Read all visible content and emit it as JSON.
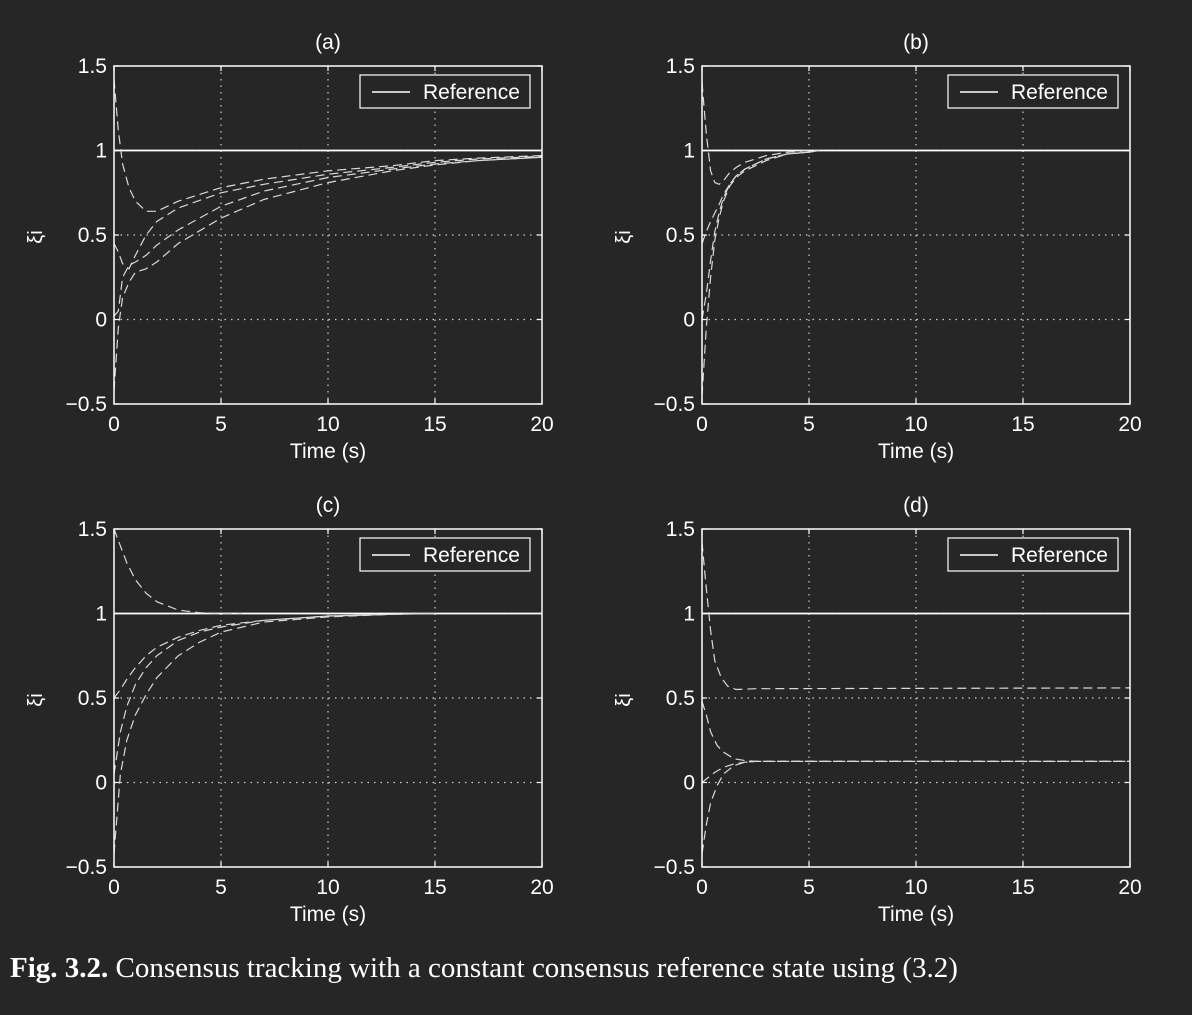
{
  "caption": {
    "label": "Fig. 3.2.",
    "text": "Consensus tracking with a constant consensus reference state using (3.2)"
  },
  "colors": {
    "background": "#262626",
    "foreground": "#ffffff",
    "trajectory": "#d9d9d9",
    "grid": "#cfcfcf"
  },
  "chart_data": [
    {
      "type": "line",
      "title": "(a)",
      "xlabel": "Time (s)",
      "ylabel": "ξi",
      "xlim": [
        0,
        20
      ],
      "ylim": [
        -0.5,
        1.5
      ],
      "xticks": [
        0,
        5,
        10,
        15,
        20
      ],
      "yticks": [
        -0.5,
        0,
        0.5,
        1,
        1.5
      ],
      "ytick_labels": [
        "−0.5",
        "0",
        "0.5",
        "1",
        "1.5"
      ],
      "grid": true,
      "legend": {
        "placement": "top-right",
        "entries": [
          "Reference"
        ]
      },
      "series": [
        {
          "name": "Reference",
          "style": "solid",
          "x": [
            0,
            20
          ],
          "y": [
            1,
            1
          ]
        },
        {
          "style": "dashed",
          "x": [
            0,
            0.2,
            0.4,
            0.7,
            1,
            1.5,
            2,
            3,
            5,
            7,
            10,
            13,
            15,
            17,
            20
          ],
          "y": [
            1.42,
            1.12,
            0.92,
            0.78,
            0.7,
            0.64,
            0.64,
            0.7,
            0.78,
            0.83,
            0.88,
            0.91,
            0.94,
            0.955,
            0.97
          ]
        },
        {
          "style": "dashed",
          "x": [
            0,
            0.2,
            0.4,
            0.7,
            1,
            1.5,
            2,
            3,
            5,
            7,
            10,
            13,
            15,
            17,
            20
          ],
          "y": [
            0.45,
            0.4,
            0.33,
            0.3,
            0.38,
            0.5,
            0.58,
            0.66,
            0.75,
            0.8,
            0.86,
            0.9,
            0.93,
            0.95,
            0.965
          ]
        },
        {
          "style": "dashed",
          "x": [
            0,
            0.2,
            0.4,
            0.7,
            1,
            1.5,
            2,
            3,
            5,
            7,
            10,
            13,
            15,
            17,
            20
          ],
          "y": [
            0.02,
            0.05,
            0.25,
            0.32,
            0.34,
            0.38,
            0.44,
            0.53,
            0.67,
            0.76,
            0.84,
            0.89,
            0.92,
            0.94,
            0.96
          ]
        },
        {
          "style": "dashed",
          "x": [
            0,
            0.2,
            0.4,
            0.7,
            1,
            1.5,
            2,
            3,
            5,
            7,
            10,
            13,
            15,
            17,
            20
          ],
          "y": [
            -0.42,
            -0.05,
            0.13,
            0.22,
            0.28,
            0.3,
            0.34,
            0.45,
            0.6,
            0.71,
            0.81,
            0.88,
            0.915,
            0.94,
            0.96
          ]
        }
      ]
    },
    {
      "type": "line",
      "title": "(b)",
      "xlabel": "Time (s)",
      "ylabel": "ξi",
      "xlim": [
        0,
        20
      ],
      "ylim": [
        -0.5,
        1.5
      ],
      "xticks": [
        0,
        5,
        10,
        15,
        20
      ],
      "yticks": [
        -0.5,
        0,
        0.5,
        1,
        1.5
      ],
      "ytick_labels": [
        "−0.5",
        "0",
        "0.5",
        "1",
        "1.5"
      ],
      "grid": true,
      "legend": {
        "placement": "top-right",
        "entries": [
          "Reference"
        ]
      },
      "series": [
        {
          "name": "Reference",
          "style": "solid",
          "x": [
            0,
            20
          ],
          "y": [
            1,
            1
          ]
        },
        {
          "style": "dashed",
          "x": [
            0,
            0.2,
            0.4,
            0.6,
            0.8,
            1,
            1.3,
            1.6,
            2,
            3,
            4,
            5,
            5.5
          ],
          "y": [
            1.4,
            1.1,
            0.88,
            0.81,
            0.8,
            0.82,
            0.87,
            0.9,
            0.93,
            0.97,
            0.99,
            1,
            1
          ]
        },
        {
          "style": "dashed",
          "x": [
            0,
            0.2,
            0.4,
            0.6,
            0.8,
            1,
            1.3,
            1.6,
            2,
            3,
            4,
            5,
            5.5
          ],
          "y": [
            0.45,
            0.52,
            0.58,
            0.63,
            0.68,
            0.74,
            0.8,
            0.85,
            0.89,
            0.95,
            0.98,
            0.99,
            1
          ]
        },
        {
          "style": "dashed",
          "x": [
            0,
            0.2,
            0.4,
            0.6,
            0.8,
            1,
            1.3,
            1.6,
            2,
            3,
            4,
            5,
            5.5
          ],
          "y": [
            0,
            0.15,
            0.35,
            0.52,
            0.63,
            0.72,
            0.8,
            0.85,
            0.89,
            0.95,
            0.98,
            0.99,
            1
          ]
        },
        {
          "style": "dashed",
          "x": [
            0,
            0.2,
            0.4,
            0.6,
            0.8,
            1,
            1.3,
            1.6,
            2,
            3,
            4,
            5,
            5.5
          ],
          "y": [
            -0.45,
            -0.05,
            0.25,
            0.47,
            0.6,
            0.7,
            0.79,
            0.84,
            0.88,
            0.94,
            0.98,
            0.99,
            1
          ]
        }
      ]
    },
    {
      "type": "line",
      "title": "(c)",
      "xlabel": "Time (s)",
      "ylabel": "ξi",
      "xlim": [
        0,
        20
      ],
      "ylim": [
        -0.5,
        1.5
      ],
      "xticks": [
        0,
        5,
        10,
        15,
        20
      ],
      "yticks": [
        -0.5,
        0,
        0.5,
        1,
        1.5
      ],
      "ytick_labels": [
        "−0.5",
        "0",
        "0.5",
        "1",
        "1.5"
      ],
      "grid": true,
      "legend": {
        "placement": "top-right",
        "entries": [
          "Reference"
        ]
      },
      "series": [
        {
          "name": "Reference",
          "style": "solid",
          "x": [
            0,
            20
          ],
          "y": [
            1,
            1
          ]
        },
        {
          "style": "dashed",
          "x": [
            0,
            0.3,
            0.6,
            1,
            1.5,
            2,
            3,
            4,
            5,
            6
          ],
          "y": [
            1.5,
            1.4,
            1.3,
            1.2,
            1.12,
            1.07,
            1.02,
            1.005,
            1,
            1
          ]
        },
        {
          "style": "dashed",
          "x": [
            0,
            0.3,
            0.6,
            1,
            1.5,
            2,
            3,
            4,
            5,
            7,
            10,
            13,
            15
          ],
          "y": [
            0.5,
            0.55,
            0.61,
            0.68,
            0.75,
            0.8,
            0.86,
            0.9,
            0.93,
            0.96,
            0.985,
            0.995,
            1
          ]
        },
        {
          "style": "dashed",
          "x": [
            0,
            0.3,
            0.6,
            1,
            1.5,
            2,
            3,
            4,
            5,
            7,
            10,
            13,
            15
          ],
          "y": [
            0.05,
            0.3,
            0.45,
            0.58,
            0.68,
            0.75,
            0.84,
            0.89,
            0.92,
            0.96,
            0.985,
            0.995,
            1
          ]
        },
        {
          "style": "dashed",
          "x": [
            0,
            0.3,
            0.6,
            1,
            1.5,
            2,
            3,
            4,
            5,
            7,
            10,
            13,
            15
          ],
          "y": [
            -0.42,
            0.05,
            0.25,
            0.4,
            0.52,
            0.62,
            0.75,
            0.83,
            0.89,
            0.95,
            0.98,
            0.995,
            1
          ]
        }
      ]
    },
    {
      "type": "line",
      "title": "(d)",
      "xlabel": "Time (s)",
      "ylabel": "ξi",
      "xlim": [
        0,
        20
      ],
      "ylim": [
        -0.5,
        1.5
      ],
      "xticks": [
        0,
        5,
        10,
        15,
        20
      ],
      "yticks": [
        -0.5,
        0,
        0.5,
        1,
        1.5
      ],
      "ytick_labels": [
        "−0.5",
        "0",
        "0.5",
        "1",
        "1.5"
      ],
      "grid": true,
      "legend": {
        "placement": "top-right",
        "entries": [
          "Reference"
        ]
      },
      "series": [
        {
          "name": "Reference",
          "style": "solid",
          "x": [
            0,
            20
          ],
          "y": [
            1,
            1
          ]
        },
        {
          "style": "dashed",
          "x": [
            0,
            0.2,
            0.4,
            0.6,
            0.9,
            1.2,
            1.6,
            2.5,
            20
          ],
          "y": [
            1.42,
            1.15,
            0.9,
            0.72,
            0.62,
            0.57,
            0.55,
            0.555,
            0.56
          ]
        },
        {
          "style": "dashed",
          "x": [
            0,
            0.2,
            0.4,
            0.7,
            1,
            1.5,
            2,
            2.5,
            20
          ],
          "y": [
            0.48,
            0.4,
            0.3,
            0.22,
            0.18,
            0.14,
            0.13,
            0.125,
            0.125
          ]
        },
        {
          "style": "dashed",
          "x": [
            0,
            0.3,
            0.6,
            1,
            1.5,
            2,
            2.5,
            20
          ],
          "y": [
            0,
            0.03,
            0.06,
            0.09,
            0.11,
            0.12,
            0.125,
            0.125
          ]
        },
        {
          "style": "dashed",
          "x": [
            0,
            0.2,
            0.4,
            0.7,
            1,
            1.5,
            2,
            2.5,
            20
          ],
          "y": [
            -0.42,
            -0.25,
            -0.12,
            -0.02,
            0.05,
            0.1,
            0.12,
            0.125,
            0.125
          ]
        }
      ]
    }
  ]
}
